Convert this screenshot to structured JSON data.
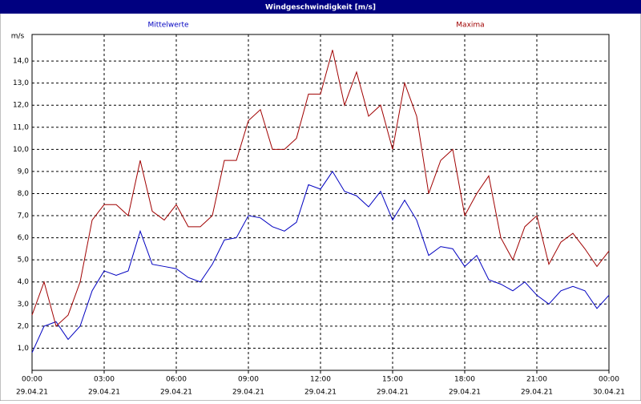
{
  "chart_data": {
    "type": "line",
    "title": "Windgeschwindigkeit [m/s]",
    "ylabel": "m/s",
    "x": [
      0,
      0.5,
      1,
      1.5,
      2,
      2.5,
      3,
      3.5,
      4,
      4.5,
      5,
      5.5,
      6,
      6.5,
      7,
      7.5,
      8,
      8.5,
      9,
      9.5,
      10,
      10.5,
      11,
      11.5,
      12,
      12.5,
      13,
      13.5,
      14,
      14.5,
      15,
      15.5,
      16,
      16.5,
      17,
      17.5,
      18,
      18.5,
      19,
      19.5,
      20,
      20.5,
      21,
      21.5,
      22,
      22.5,
      23,
      23.5,
      24
    ],
    "series": [
      {
        "name": "Mittelwerte",
        "color": "#0000c0",
        "values": [
          0.8,
          2.0,
          2.2,
          1.4,
          2.0,
          3.6,
          4.5,
          4.3,
          4.5,
          6.3,
          4.8,
          4.7,
          4.6,
          4.2,
          4.0,
          4.8,
          5.9,
          6.0,
          7.0,
          6.9,
          6.5,
          6.3,
          6.7,
          8.4,
          8.2,
          9.0,
          8.1,
          7.9,
          7.4,
          8.1,
          6.8,
          7.7,
          6.8,
          5.2,
          5.6,
          5.5,
          4.7,
          5.2,
          4.1,
          3.9,
          3.6,
          4.0,
          3.4,
          3.0,
          3.6,
          3.8,
          3.6,
          2.8,
          3.4
        ]
      },
      {
        "name": "Maxima",
        "color": "#a00000",
        "values": [
          2.5,
          4.0,
          2.0,
          2.5,
          4.0,
          6.8,
          7.5,
          7.5,
          7.0,
          9.5,
          7.2,
          6.8,
          7.5,
          6.5,
          6.5,
          7.0,
          9.5,
          9.5,
          11.3,
          11.8,
          10.0,
          10.0,
          10.5,
          12.5,
          12.5,
          14.5,
          12.0,
          13.5,
          11.5,
          12.0,
          10.0,
          13.0,
          11.5,
          8.0,
          9.5,
          10.0,
          7.0,
          8.0,
          8.8,
          6.0,
          5.0,
          6.5,
          7.0,
          4.8,
          5.8,
          6.2,
          5.5,
          4.7,
          5.4
        ]
      }
    ],
    "xlim": [
      0,
      24
    ],
    "xticks": [
      {
        "value": 0,
        "label": "00:00"
      },
      {
        "value": 3,
        "label": "03:00"
      },
      {
        "value": 6,
        "label": "06:00"
      },
      {
        "value": 9,
        "label": "09:00"
      },
      {
        "value": 12,
        "label": "12:00"
      },
      {
        "value": 15,
        "label": "15:00"
      },
      {
        "value": 18,
        "label": "18:00"
      },
      {
        "value": 21,
        "label": "21:00"
      },
      {
        "value": 24,
        "label": "00:00"
      }
    ],
    "xtick_dates": [
      "29.04.21",
      "29.04.21",
      "29.04.21",
      "29.04.21",
      "29.04.21",
      "29.04.21",
      "29.04.21",
      "29.04.21",
      "30.04.21"
    ],
    "ylim": [
      0,
      15.2
    ],
    "yticks": [
      {
        "value": 1,
        "label": "1,0"
      },
      {
        "value": 2,
        "label": "2,0"
      },
      {
        "value": 3,
        "label": "3,0"
      },
      {
        "value": 4,
        "label": "4,0"
      },
      {
        "value": 5,
        "label": "5,0"
      },
      {
        "value": 6,
        "label": "6,0"
      },
      {
        "value": 7,
        "label": "7,0"
      },
      {
        "value": 8,
        "label": "8,0"
      },
      {
        "value": 9,
        "label": "9,0"
      },
      {
        "value": 10,
        "label": "10,0"
      },
      {
        "value": 11,
        "label": "11,0"
      },
      {
        "value": 12,
        "label": "12,0"
      },
      {
        "value": 13,
        "label": "13,0"
      },
      {
        "value": 14,
        "label": "14,0"
      }
    ],
    "grid": true
  }
}
